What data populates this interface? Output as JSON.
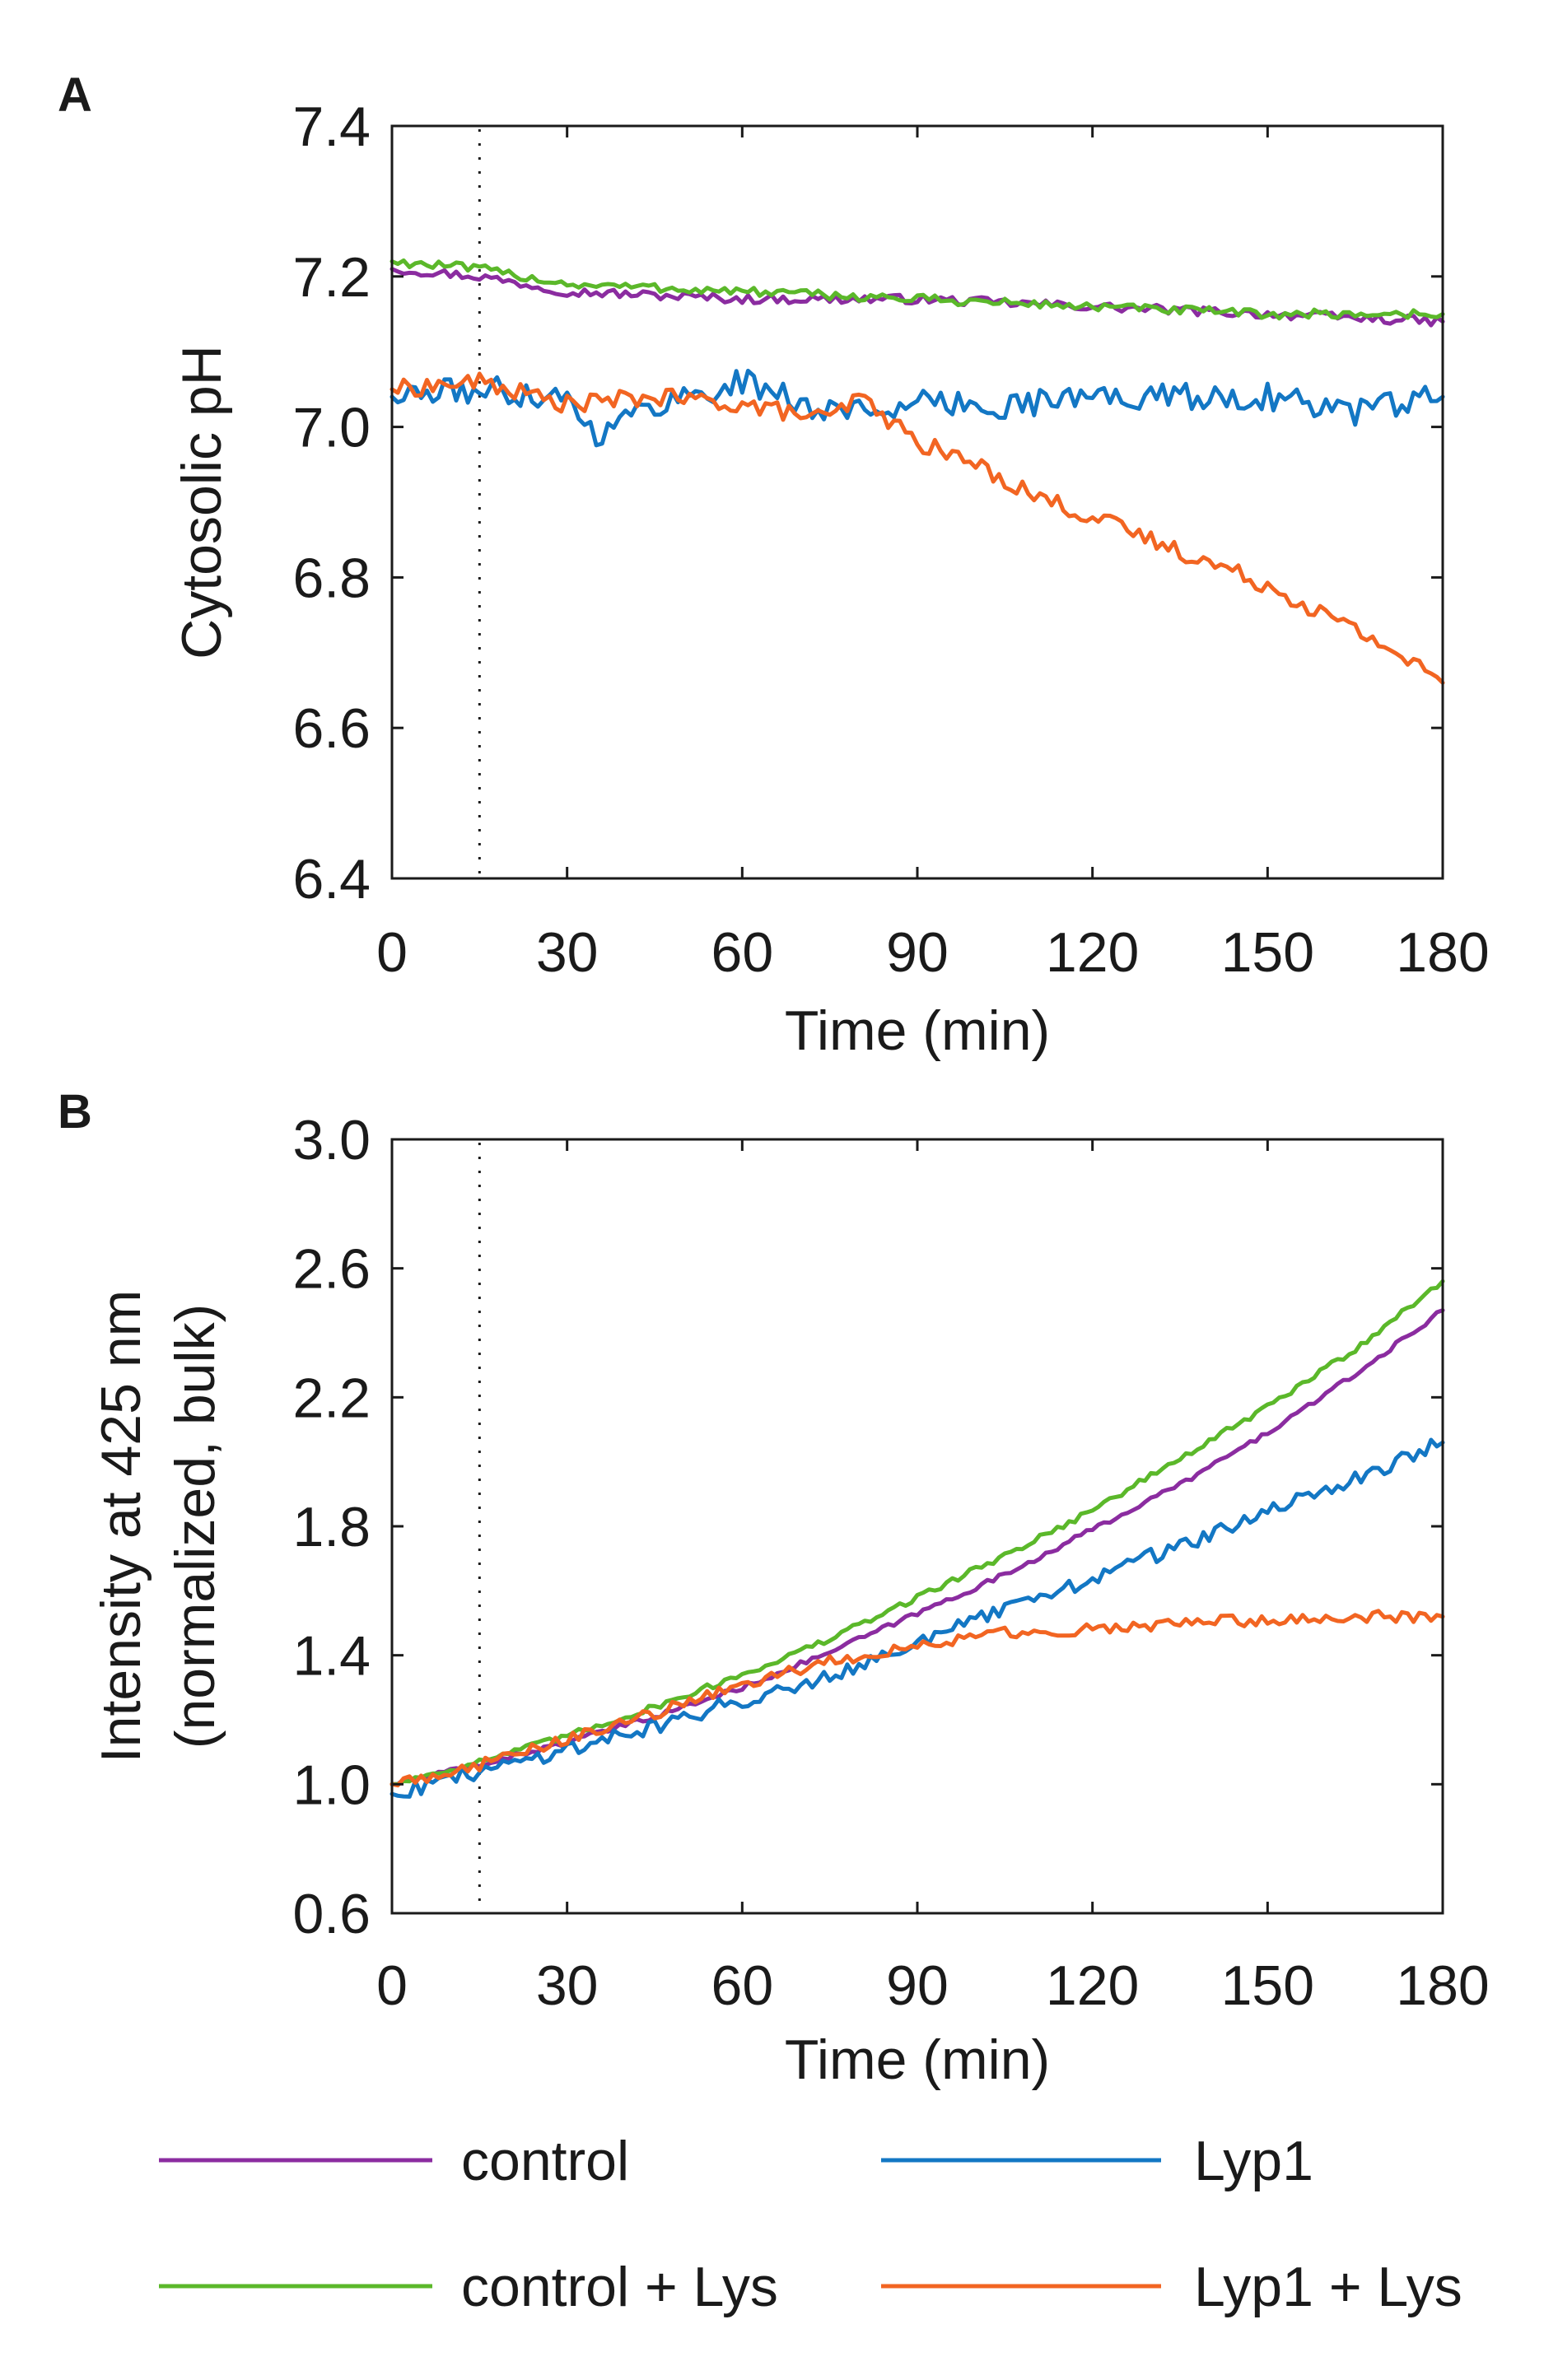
{
  "chart_data": [
    {
      "type": "line",
      "panel": "A",
      "title": "",
      "xlabel": "Time (min)",
      "ylabel": "Cytosolic pH",
      "xlim": [
        0,
        180
      ],
      "ylim": [
        6.4,
        7.4
      ],
      "xticks": [
        0,
        30,
        60,
        90,
        120,
        150,
        180
      ],
      "yticks": [
        6.4,
        6.6,
        6.8,
        7.0,
        7.2,
        7.4
      ],
      "ytick_labels": [
        "6.4",
        "6.6",
        "6.8",
        "7.0",
        "7.2",
        "7.4"
      ],
      "marker_x": 15,
      "grid": false,
      "series": [
        {
          "name": "control",
          "color": "#8b2ca0",
          "x": [
            0,
            15,
            30,
            60,
            90,
            120,
            150,
            180
          ],
          "y": [
            7.21,
            7.2,
            7.18,
            7.17,
            7.17,
            7.16,
            7.15,
            7.14
          ]
        },
        {
          "name": "control + Lys",
          "color": "#5bb82a",
          "x": [
            0,
            15,
            30,
            60,
            90,
            120,
            150,
            180
          ],
          "y": [
            7.22,
            7.21,
            7.19,
            7.18,
            7.17,
            7.16,
            7.15,
            7.15
          ]
        },
        {
          "name": "Lyp1",
          "color": "#1377c4",
          "x": [
            0,
            15,
            30,
            35,
            45,
            60,
            75,
            90,
            105,
            120,
            135,
            150,
            165,
            180
          ],
          "y": [
            7.04,
            7.05,
            7.04,
            6.99,
            7.03,
            7.06,
            7.02,
            7.03,
            7.03,
            7.04,
            7.04,
            7.04,
            7.02,
            7.04
          ]
        },
        {
          "name": "Lyp1 + Lys",
          "color": "#f26522",
          "x": [
            0,
            15,
            30,
            45,
            60,
            75,
            80,
            90,
            100,
            110,
            120,
            130,
            140,
            150,
            160,
            170,
            180
          ],
          "y": [
            7.05,
            7.06,
            7.03,
            7.04,
            7.03,
            7.01,
            7.04,
            6.98,
            6.95,
            6.91,
            6.88,
            6.85,
            6.82,
            6.79,
            6.75,
            6.71,
            6.66
          ]
        }
      ]
    },
    {
      "type": "line",
      "panel": "B",
      "title": "",
      "xlabel": "Time (min)",
      "ylabel": "Intensity at 425 nm",
      "ylabel2": "(normalized, bulk)",
      "xlim": [
        0,
        180
      ],
      "ylim": [
        0.6,
        3.0
      ],
      "xticks": [
        0,
        30,
        60,
        90,
        120,
        150,
        180
      ],
      "yticks": [
        0.6,
        1.0,
        1.4,
        1.8,
        2.2,
        2.6,
        3.0
      ],
      "ytick_labels": [
        "0.6",
        "1.0",
        "1.4",
        "1.8",
        "2.2",
        "2.6",
        "3.0"
      ],
      "marker_x": 15,
      "grid": false,
      "series": [
        {
          "name": "control",
          "color": "#8b2ca0",
          "x": [
            0,
            15,
            30,
            45,
            60,
            75,
            90,
            105,
            120,
            135,
            150,
            165,
            180
          ],
          "y": [
            1.0,
            1.06,
            1.13,
            1.21,
            1.3,
            1.41,
            1.53,
            1.65,
            1.79,
            1.93,
            2.09,
            2.27,
            2.47
          ]
        },
        {
          "name": "control + Lys",
          "color": "#5bb82a",
          "x": [
            0,
            15,
            30,
            45,
            60,
            75,
            90,
            105,
            120,
            135,
            150,
            165,
            180
          ],
          "y": [
            1.0,
            1.07,
            1.15,
            1.24,
            1.34,
            1.45,
            1.58,
            1.71,
            1.85,
            2.01,
            2.17,
            2.35,
            2.56
          ]
        },
        {
          "name": "Lyp1",
          "color": "#1377c4",
          "x": [
            0,
            15,
            30,
            45,
            60,
            75,
            90,
            105,
            120,
            135,
            150,
            165,
            180
          ],
          "y": [
            0.97,
            1.04,
            1.11,
            1.18,
            1.26,
            1.34,
            1.44,
            1.54,
            1.64,
            1.74,
            1.84,
            1.95,
            2.06
          ]
        },
        {
          "name": "Lyp1 + Lys",
          "color": "#f26522",
          "x": [
            0,
            15,
            30,
            45,
            60,
            75,
            90,
            105,
            120,
            135,
            150,
            165,
            180
          ],
          "y": [
            1.0,
            1.06,
            1.14,
            1.22,
            1.31,
            1.38,
            1.43,
            1.47,
            1.48,
            1.5,
            1.51,
            1.52,
            1.52
          ]
        }
      ]
    }
  ],
  "legend": {
    "placement": "bottom",
    "items": [
      {
        "label": "control",
        "color": "#8b2ca0"
      },
      {
        "label": "Lyp1",
        "color": "#1377c4"
      },
      {
        "label": "control + Lys",
        "color": "#5bb82a"
      },
      {
        "label": "Lyp1 + Lys",
        "color": "#f26522"
      }
    ]
  }
}
